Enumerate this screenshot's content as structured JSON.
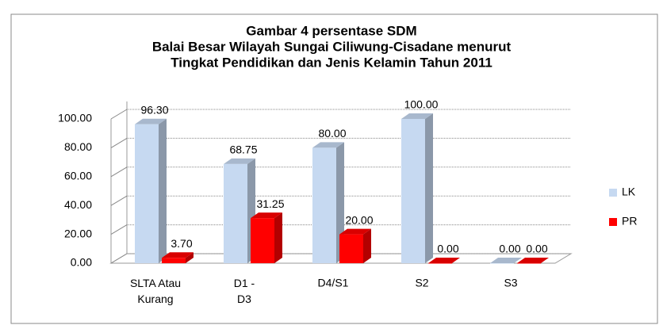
{
  "chart_data": {
    "type": "bar3d",
    "title": [
      "Gambar 4 persentase  SDM",
      "Balai Besar Wilayah Sungai Ciliwung-Cisadane menurut",
      "Tingkat Pendidikan  dan Jenis Kelamin Tahun 2011"
    ],
    "categories": [
      "SLTA Atau Kurang",
      "D1 - D3",
      "D4/S1",
      "S2",
      "S3"
    ],
    "series": [
      {
        "name": "LK",
        "color": "#c6d9f1",
        "values": [
          96.3,
          68.75,
          80,
          100,
          0
        ],
        "value_labels": [
          "96.30",
          "68.75",
          "80.00",
          "100.00",
          "0.00"
        ]
      },
      {
        "name": "PR",
        "color": "#ff0000",
        "values": [
          3.7,
          31.25,
          20,
          0,
          0
        ],
        "value_labels": [
          "3.70",
          "31.25",
          "20.00",
          "0.00",
          "0.00"
        ]
      }
    ],
    "ylim": [
      0,
      100
    ],
    "yticks": [
      {
        "value": 0,
        "label": "0.00"
      },
      {
        "value": 20,
        "label": "20.00"
      },
      {
        "value": 40,
        "label": "40.00"
      },
      {
        "value": 60,
        "label": "60.00"
      },
      {
        "value": 80,
        "label": "80.00"
      },
      {
        "value": 100,
        "label": "100.00"
      }
    ],
    "grid": true,
    "legend": "right"
  }
}
